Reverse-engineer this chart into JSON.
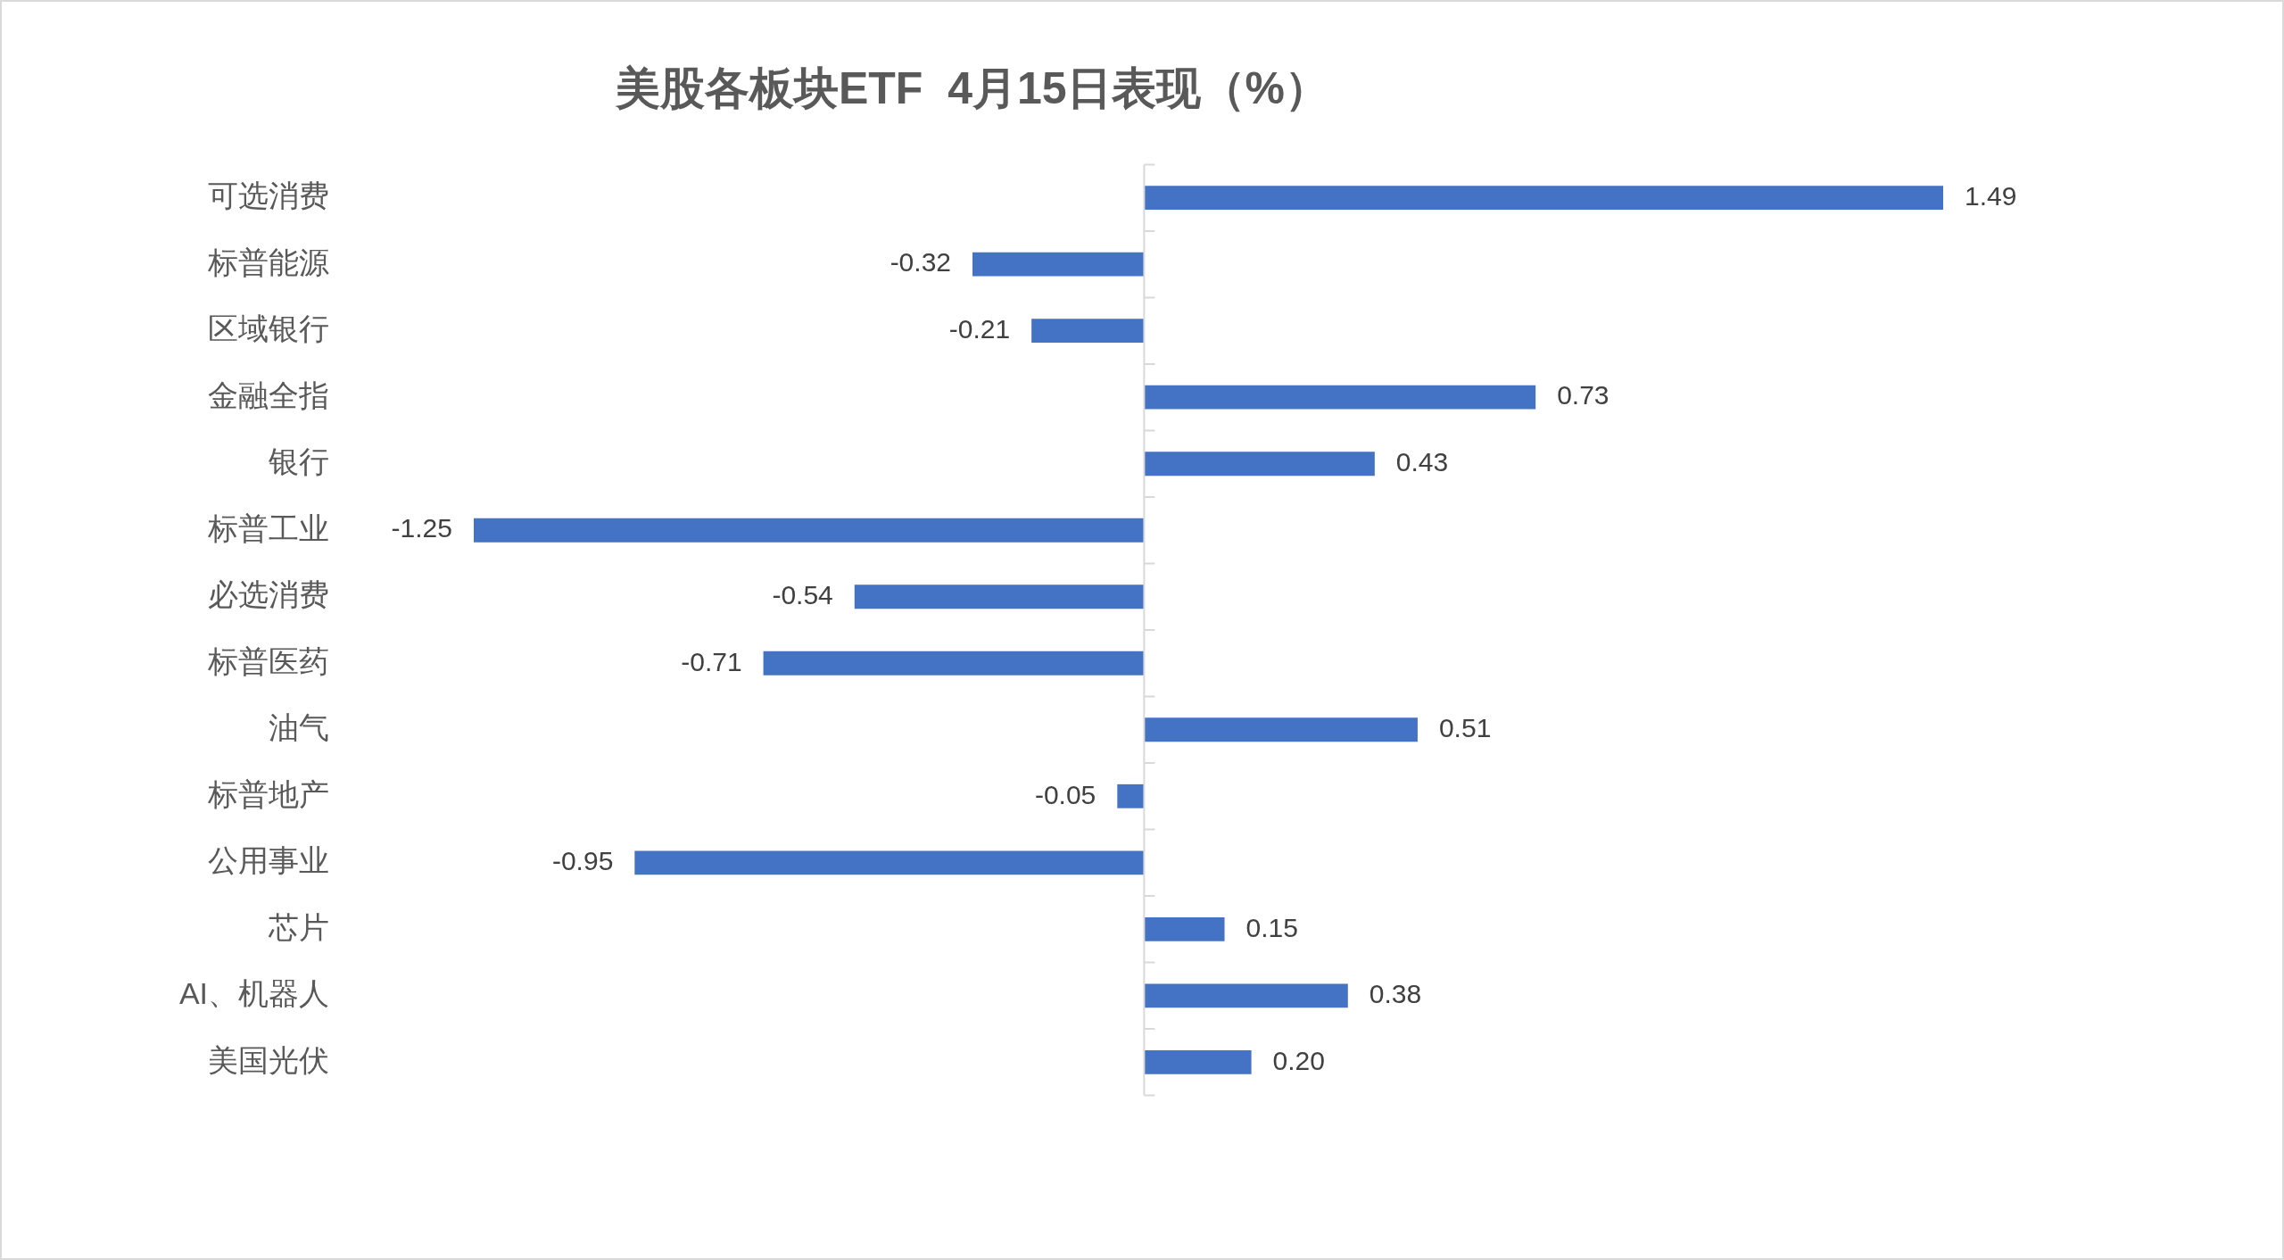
{
  "chart_data": {
    "type": "bar",
    "title": "美股各板块ETF  4月15日表现（%）",
    "orientation": "horizontal",
    "categories": [
      "可选消费",
      "标普能源",
      "区域银行",
      "金融全指",
      "银行",
      "标普工业",
      "必选消费",
      "标普医药",
      "油气",
      "标普地产",
      "公用事业",
      "芯片",
      "AI、机器人",
      "美国光伏"
    ],
    "values": [
      1.49,
      -0.32,
      -0.21,
      0.73,
      0.43,
      -1.25,
      -0.54,
      -0.71,
      0.51,
      -0.05,
      -0.95,
      0.15,
      0.38,
      0.2
    ],
    "value_labels": [
      "1.49",
      "-0.32",
      "-0.21",
      "0.73",
      "0.43",
      "-1.25",
      "-0.54",
      "-0.71",
      "0.51",
      "-0.05",
      "-0.95",
      "0.15",
      "0.38",
      "0.20"
    ],
    "color": "#4472c4",
    "tick_labels": "y",
    "grid": false,
    "legend": false
  }
}
